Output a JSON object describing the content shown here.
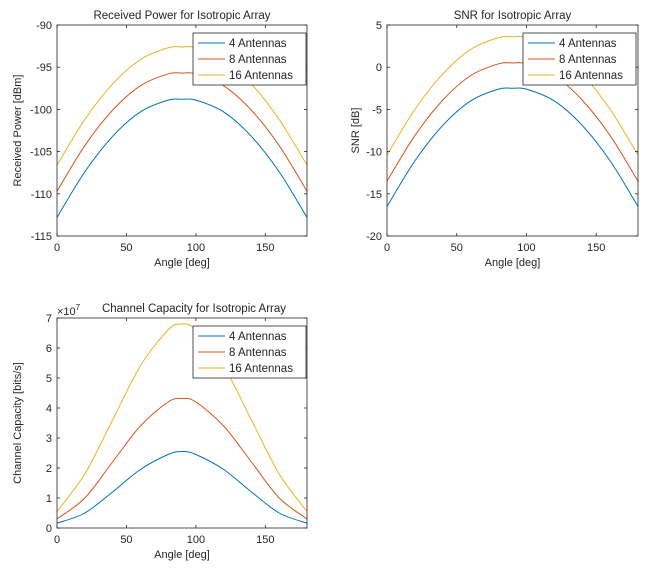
{
  "colors": {
    "series": [
      "#0072bd",
      "#d95319",
      "#edb120"
    ],
    "axis": "#262626",
    "background": "#ffffff"
  },
  "chart_data": [
    {
      "type": "line",
      "title": "Received Power for Isotropic Array",
      "xlabel": "Angle [deg]",
      "ylabel": "Received Power [dBm]",
      "xlim": [
        0,
        180
      ],
      "ylim": [
        -115,
        -90
      ],
      "xticks": [
        0,
        50,
        100,
        150
      ],
      "yticks": [
        -115,
        -110,
        -105,
        -100,
        -95,
        -90
      ],
      "legend_position": "top-right",
      "grid": false,
      "series": [
        {
          "name": "4 Antennas",
          "color": "#0072bd",
          "x": [
            0,
            20,
            40,
            60,
            80,
            90,
            100,
            120,
            140,
            160,
            180
          ],
          "y": [
            -112.8,
            -107.4,
            -103.2,
            -100.3,
            -98.9,
            -98.8,
            -98.9,
            -100.3,
            -103.2,
            -107.4,
            -112.8
          ]
        },
        {
          "name": "8 Antennas",
          "color": "#d95319",
          "x": [
            0,
            20,
            40,
            60,
            80,
            90,
            100,
            120,
            140,
            160,
            180
          ],
          "y": [
            -109.7,
            -104.3,
            -100.1,
            -97.2,
            -95.8,
            -95.7,
            -95.8,
            -97.2,
            -100.1,
            -104.3,
            -109.7
          ]
        },
        {
          "name": "16 Antennas",
          "color": "#edb120",
          "x": [
            0,
            20,
            40,
            60,
            80,
            90,
            100,
            120,
            140,
            160,
            180
          ],
          "y": [
            -106.6,
            -101.2,
            -97.0,
            -94.1,
            -92.7,
            -92.6,
            -92.7,
            -94.1,
            -97.0,
            -101.2,
            -106.6
          ]
        }
      ]
    },
    {
      "type": "line",
      "title": "SNR for Isotropic Array",
      "xlabel": "Angle [deg]",
      "ylabel": "SNR [dB]",
      "xlim": [
        0,
        180
      ],
      "ylim": [
        -20,
        5
      ],
      "xticks": [
        0,
        50,
        100,
        150
      ],
      "yticks": [
        -20,
        -15,
        -10,
        -5,
        0,
        5
      ],
      "legend_position": "top-right",
      "grid": false,
      "series": [
        {
          "name": "4 Antennas",
          "color": "#0072bd",
          "x": [
            0,
            20,
            40,
            60,
            80,
            90,
            100,
            120,
            140,
            160,
            180
          ],
          "y": [
            -16.5,
            -11.1,
            -6.9,
            -4.0,
            -2.6,
            -2.5,
            -2.6,
            -4.0,
            -6.9,
            -11.1,
            -16.5
          ]
        },
        {
          "name": "8 Antennas",
          "color": "#d95319",
          "x": [
            0,
            20,
            40,
            60,
            80,
            90,
            100,
            120,
            140,
            160,
            180
          ],
          "y": [
            -13.5,
            -8.1,
            -3.9,
            -1.0,
            0.4,
            0.5,
            0.4,
            -1.0,
            -3.9,
            -8.1,
            -13.5
          ]
        },
        {
          "name": "16 Antennas",
          "color": "#edb120",
          "x": [
            0,
            20,
            40,
            60,
            80,
            90,
            100,
            120,
            140,
            160,
            180
          ],
          "y": [
            -10.4,
            -5.0,
            -0.8,
            2.1,
            3.5,
            3.6,
            3.5,
            2.1,
            -0.8,
            -5.0,
            -10.4
          ]
        }
      ]
    },
    {
      "type": "line",
      "title": "Channel Capacity for Isotropic Array",
      "xlabel": "Angle [deg]",
      "ylabel": "Channel Capacity [bits/s]",
      "exponent_label": "×10",
      "exponent_power": "7",
      "xlim": [
        0,
        180
      ],
      "ylim": [
        0,
        7
      ],
      "xticks": [
        0,
        50,
        100,
        150
      ],
      "yticks": [
        0,
        1,
        2,
        3,
        4,
        5,
        6,
        7
      ],
      "legend_position": "top-right",
      "grid": false,
      "series": [
        {
          "name": "4 Antennas",
          "color": "#0072bd",
          "x": [
            0,
            20,
            40,
            60,
            80,
            90,
            100,
            120,
            140,
            160,
            180
          ],
          "y": [
            0.16,
            0.5,
            1.2,
            1.95,
            2.45,
            2.55,
            2.45,
            1.95,
            1.2,
            0.5,
            0.16
          ]
        },
        {
          "name": "8 Antennas",
          "color": "#d95319",
          "x": [
            0,
            20,
            40,
            60,
            80,
            90,
            100,
            120,
            140,
            160,
            180
          ],
          "y": [
            0.3,
            1.0,
            2.2,
            3.4,
            4.2,
            4.32,
            4.2,
            3.4,
            2.2,
            1.0,
            0.3
          ]
        },
        {
          "name": "16 Antennas",
          "color": "#edb120",
          "x": [
            0,
            20,
            40,
            60,
            80,
            90,
            100,
            120,
            140,
            160,
            180
          ],
          "y": [
            0.55,
            1.8,
            3.6,
            5.4,
            6.6,
            6.8,
            6.6,
            5.4,
            3.6,
            1.8,
            0.55
          ]
        }
      ]
    }
  ]
}
